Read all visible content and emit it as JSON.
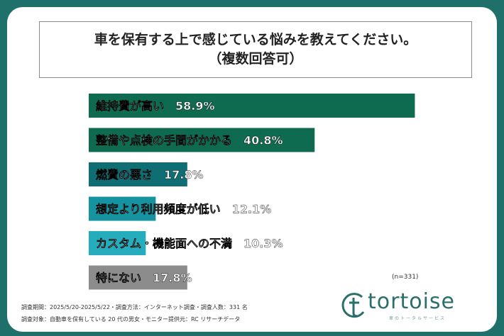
{
  "title": {
    "line1": "車を保有する上で感じている悩みを教えてください。",
    "line2": "（複数回答可）"
  },
  "note": "(n=331)",
  "footnotes": [
    "調査期間：2025/5/20-2025/5/22・調査方法：インターネット調査・調査人数：331 名",
    "調査対象：自動車を保有している 20 代の男女・モニター提供元：RC リサーチデータ"
  ],
  "logo": {
    "text": "tortoise",
    "subtitle": "車のトータルサービス"
  },
  "colors": {
    "background": "#1f6f6a",
    "bar_dark_green": "#0f6b4f",
    "bar_teal_dark": "#0e6e74",
    "bar_teal": "#1593a0",
    "bar_cyan": "#26adbd",
    "bar_gray": "#8c8c8c"
  },
  "chart_data": {
    "type": "bar",
    "orientation": "horizontal",
    "categories": [
      "維持費が高い",
      "整備や点検の手間がかかる",
      "燃費の悪さ",
      "想定より利用頻度が低い",
      "カスタム・機能面への不満",
      "特にない"
    ],
    "values": [
      58.9,
      40.8,
      17.8,
      12.1,
      10.3,
      17.8
    ],
    "labels": [
      "維持費が高い　58.9%",
      "整備や点検の手間がかかる　40.8%",
      "燃費の悪さ　17.8%",
      "想定より利用頻度が低い　12.1%",
      "カスタム・機能面への不満　10.3%",
      "特にない　17.8%"
    ],
    "bar_colors": [
      "#0f6b4f",
      "#0f6b4f",
      "#0e6e74",
      "#1593a0",
      "#26adbd",
      "#8c8c8c"
    ],
    "unit": "%",
    "xlim": [
      0,
      100
    ],
    "grid": false,
    "title": "車を保有する上で感じている悩みを教えてください。（複数回答可）"
  }
}
